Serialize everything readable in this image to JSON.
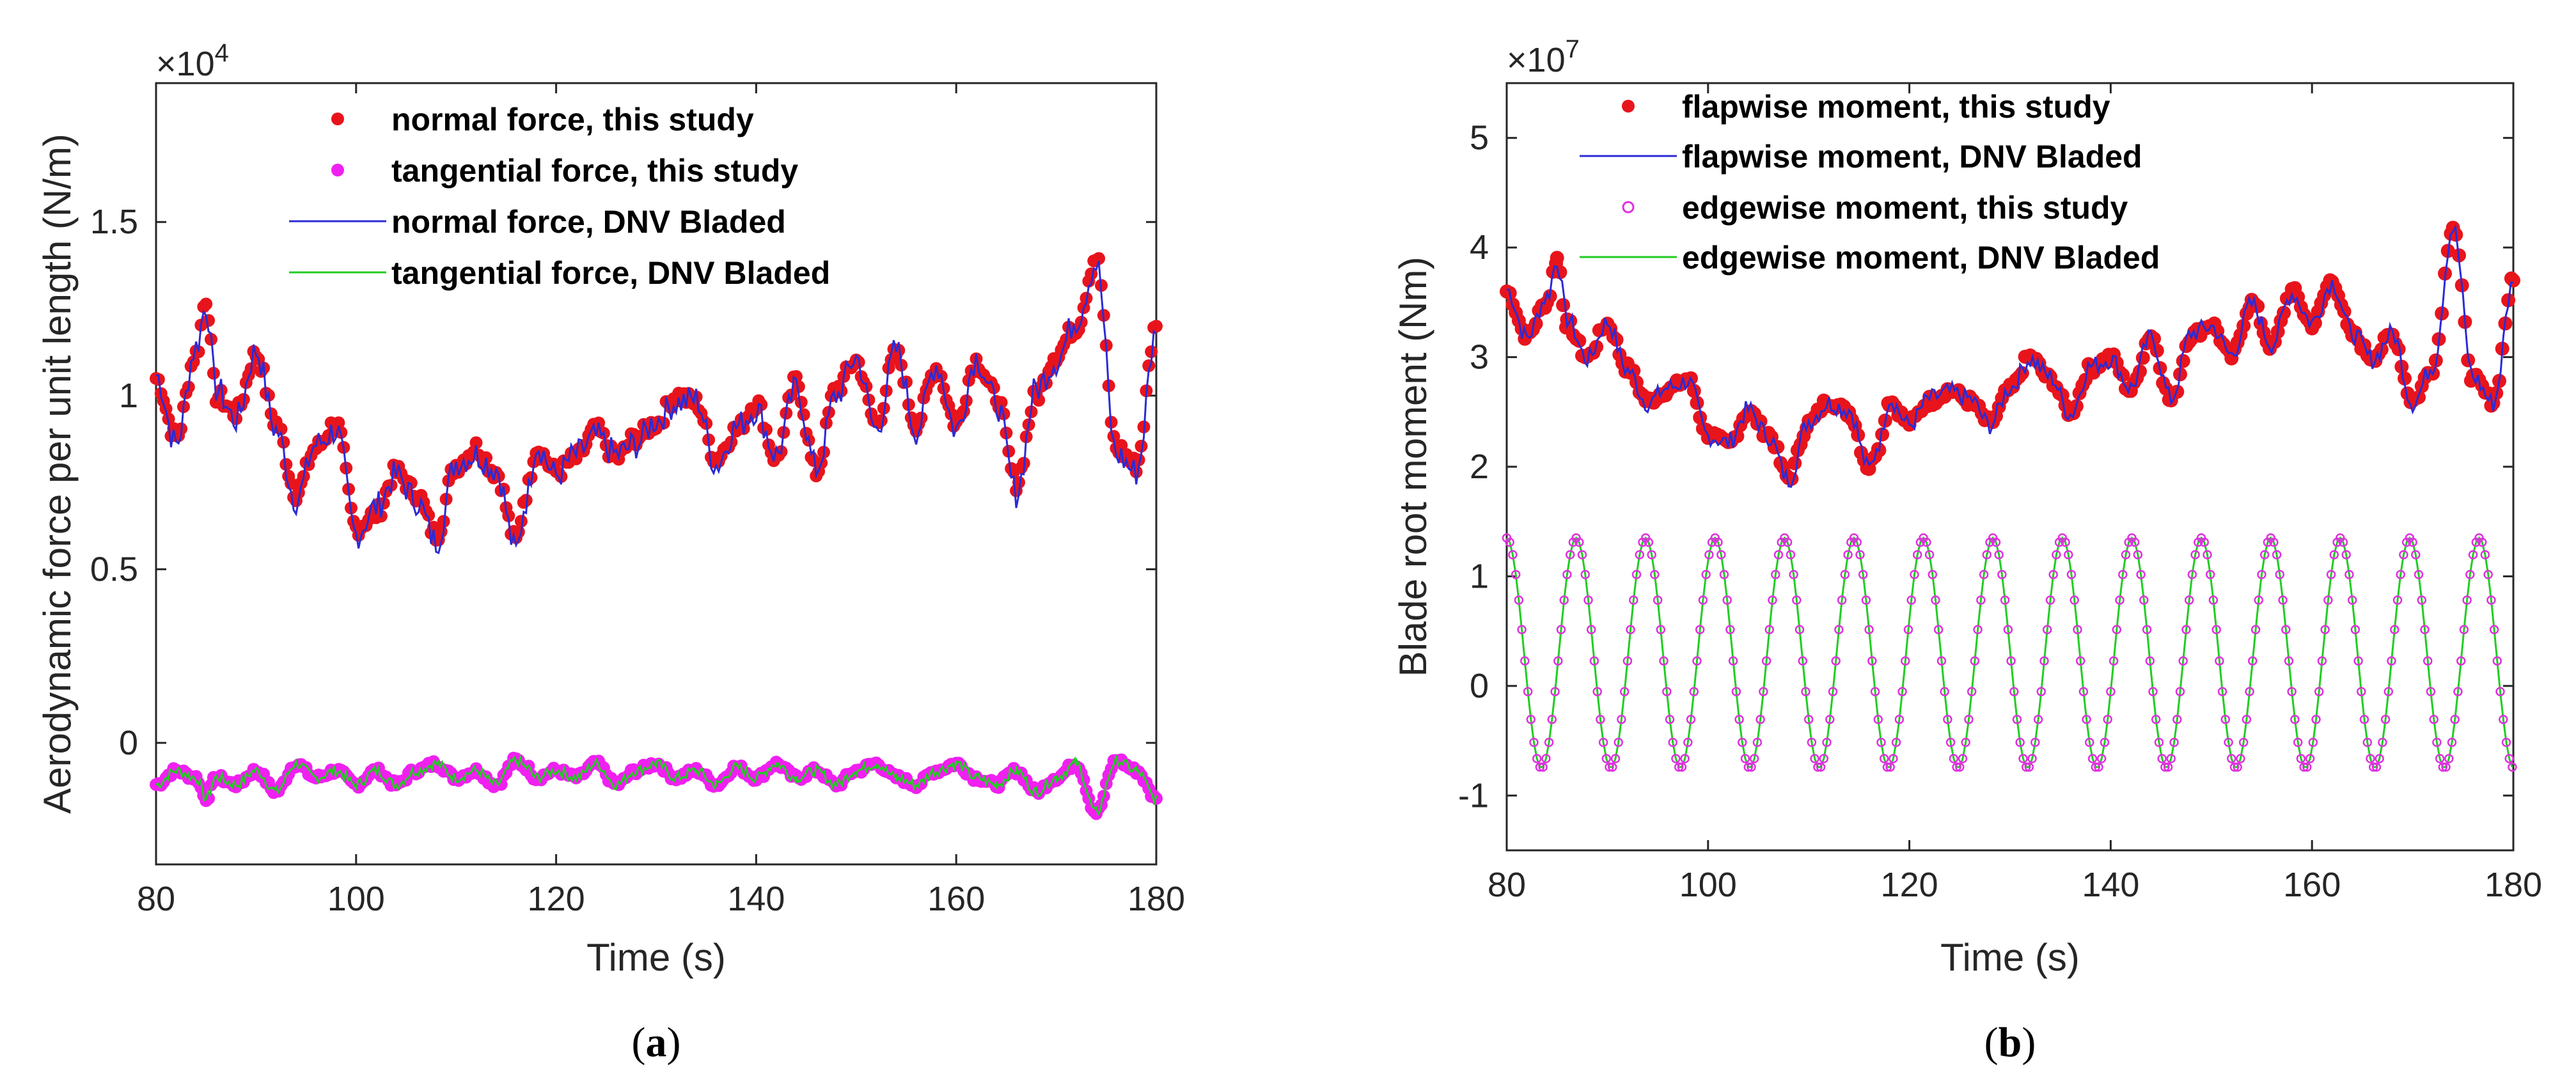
{
  "chart_data": [
    {
      "type": "line",
      "panel_label": "a",
      "xlabel": "Time (s)",
      "ylabel": "Aerodynamic force per unit length (N/m)",
      "exponent_base": "×10",
      "exponent_power": "4",
      "xlim": [
        80,
        180
      ],
      "ylim": [
        -0.35,
        1.9
      ],
      "xticks": [
        80,
        100,
        120,
        140,
        160,
        180
      ],
      "xtick_labels": [
        "80",
        "100",
        "120",
        "140",
        "160",
        "180"
      ],
      "yticks": [
        0,
        0.5,
        1,
        1.5
      ],
      "ytick_labels": [
        "0",
        "0.5",
        "1",
        "1.5"
      ],
      "legend_position": "top-center",
      "x": [
        80,
        82,
        84,
        85,
        86,
        88,
        90,
        92,
        94,
        96,
        98,
        100,
        102,
        104,
        106,
        108,
        110,
        112,
        114,
        116,
        117,
        118,
        120,
        122,
        124,
        126,
        128,
        130,
        132,
        134,
        136,
        138,
        140,
        142,
        144,
        146,
        148,
        150,
        152,
        154,
        156,
        158,
        160,
        162,
        164,
        166,
        168,
        170,
        172,
        174,
        176,
        178,
        180
      ],
      "series": [
        {
          "name": "normal force, this study",
          "style": "marker",
          "color": "#e8141c",
          "values": [
            1.05,
            0.88,
            1.12,
            1.28,
            1.0,
            0.95,
            1.12,
            0.92,
            0.72,
            0.85,
            0.92,
            0.62,
            0.66,
            0.78,
            0.72,
            0.6,
            0.8,
            0.85,
            0.78,
            0.58,
            0.72,
            0.85,
            0.78,
            0.82,
            0.9,
            0.82,
            0.88,
            0.92,
            1.0,
            0.98,
            0.82,
            0.9,
            0.98,
            0.82,
            1.04,
            0.78,
            1.02,
            1.1,
            0.92,
            1.12,
            0.92,
            1.08,
            0.92,
            1.1,
            1.0,
            0.75,
            1.0,
            1.12,
            1.2,
            1.4,
            0.85,
            0.8,
            1.2
          ]
        },
        {
          "name": "tangential force, this study",
          "style": "marker",
          "color": "#f020f0",
          "values": [
            -0.12,
            -0.08,
            -0.1,
            -0.16,
            -0.1,
            -0.12,
            -0.08,
            -0.14,
            -0.06,
            -0.1,
            -0.08,
            -0.12,
            -0.08,
            -0.12,
            -0.08,
            -0.06,
            -0.1,
            -0.08,
            -0.12,
            -0.05,
            -0.07,
            -0.1,
            -0.08,
            -0.1,
            -0.06,
            -0.12,
            -0.08,
            -0.06,
            -0.1,
            -0.08,
            -0.12,
            -0.07,
            -0.1,
            -0.06,
            -0.1,
            -0.08,
            -0.12,
            -0.08,
            -0.06,
            -0.1,
            -0.12,
            -0.08,
            -0.06,
            -0.1,
            -0.12,
            -0.08,
            -0.14,
            -0.1,
            -0.06,
            -0.2,
            -0.05,
            -0.08,
            -0.16
          ]
        },
        {
          "name": "normal force, DNV Bladed",
          "style": "line",
          "color": "#2b2bd6",
          "values": [
            1.06,
            0.86,
            1.14,
            1.26,
            1.02,
            0.93,
            1.13,
            0.9,
            0.7,
            0.86,
            0.9,
            0.6,
            0.68,
            0.77,
            0.7,
            0.58,
            0.81,
            0.83,
            0.79,
            0.55,
            0.7,
            0.86,
            0.77,
            0.83,
            0.88,
            0.83,
            0.86,
            0.93,
            0.98,
            0.99,
            0.8,
            0.91,
            0.96,
            0.83,
            1.02,
            0.79,
            1.0,
            1.11,
            0.9,
            1.13,
            0.9,
            1.09,
            0.9,
            1.11,
            0.98,
            0.72,
            1.02,
            1.1,
            1.22,
            1.38,
            0.83,
            0.78,
            1.18
          ]
        },
        {
          "name": "tangential force, DNV Bladed",
          "style": "line",
          "color": "#22cc22",
          "values": [
            -0.12,
            -0.08,
            -0.1,
            -0.16,
            -0.1,
            -0.12,
            -0.08,
            -0.14,
            -0.06,
            -0.1,
            -0.08,
            -0.12,
            -0.08,
            -0.12,
            -0.08,
            -0.06,
            -0.1,
            -0.08,
            -0.12,
            -0.05,
            -0.07,
            -0.1,
            -0.08,
            -0.1,
            -0.06,
            -0.12,
            -0.08,
            -0.06,
            -0.1,
            -0.08,
            -0.12,
            -0.07,
            -0.1,
            -0.06,
            -0.1,
            -0.08,
            -0.12,
            -0.08,
            -0.06,
            -0.1,
            -0.12,
            -0.08,
            -0.06,
            -0.1,
            -0.12,
            -0.08,
            -0.14,
            -0.1,
            -0.06,
            -0.2,
            -0.05,
            -0.08,
            -0.16
          ]
        }
      ]
    },
    {
      "type": "line",
      "panel_label": "b",
      "xlabel": "Time (s)",
      "ylabel": "Blade root moment (Nm)",
      "exponent_base": "×10",
      "exponent_power": "7",
      "xlim": [
        80,
        180
      ],
      "ylim": [
        -1.5,
        5.5
      ],
      "xticks": [
        80,
        100,
        120,
        140,
        160,
        180
      ],
      "xtick_labels": [
        "80",
        "100",
        "120",
        "140",
        "160",
        "180"
      ],
      "yticks": [
        -1,
        0,
        1,
        2,
        3,
        4,
        5
      ],
      "ytick_labels": [
        "-1",
        "0",
        "1",
        "2",
        "3",
        "4",
        "5"
      ],
      "legend_position": "top-center",
      "flap_x": [
        80,
        82,
        84,
        85,
        86,
        88,
        90,
        92,
        94,
        96,
        98,
        100,
        102,
        104,
        106,
        108,
        110,
        112,
        114,
        116,
        117,
        118,
        120,
        122,
        124,
        126,
        128,
        130,
        132,
        134,
        136,
        138,
        140,
        142,
        144,
        146,
        148,
        150,
        152,
        154,
        156,
        158,
        160,
        162,
        164,
        166,
        168,
        170,
        172,
        174,
        176,
        178,
        180
      ],
      "edge_period_s": 6.9,
      "edge_amplitude": 1.05,
      "edge_mean": 0.3,
      "series": [
        {
          "name": "flapwise moment, this study",
          "style": "marker",
          "color": "#e8141c",
          "values": [
            3.6,
            3.2,
            3.5,
            3.9,
            3.3,
            3.0,
            3.3,
            2.9,
            2.6,
            2.7,
            2.8,
            2.3,
            2.2,
            2.5,
            2.3,
            1.9,
            2.4,
            2.6,
            2.5,
            2.0,
            2.2,
            2.6,
            2.4,
            2.6,
            2.7,
            2.6,
            2.4,
            2.7,
            3.0,
            2.8,
            2.5,
            2.9,
            3.0,
            2.7,
            3.2,
            2.6,
            3.2,
            3.3,
            3.0,
            3.5,
            3.1,
            3.6,
            3.3,
            3.7,
            3.2,
            3.0,
            3.2,
            2.6,
            2.9,
            4.2,
            2.8,
            2.6,
            3.7
          ]
        },
        {
          "name": "flapwise moment, DNV Bladed",
          "style": "line",
          "color": "#2b2bd6",
          "values": [
            3.62,
            3.18,
            3.55,
            3.88,
            3.35,
            2.98,
            3.32,
            2.88,
            2.58,
            2.72,
            2.78,
            2.28,
            2.22,
            2.52,
            2.28,
            1.88,
            2.42,
            2.58,
            2.52,
            1.98,
            2.22,
            2.62,
            2.38,
            2.62,
            2.68,
            2.62,
            2.38,
            2.72,
            2.98,
            2.82,
            2.48,
            2.92,
            2.98,
            2.72,
            3.18,
            2.62,
            3.22,
            3.28,
            3.02,
            3.48,
            3.12,
            3.58,
            3.32,
            3.68,
            3.22,
            2.98,
            3.22,
            2.58,
            2.92,
            4.18,
            2.82,
            2.58,
            3.68
          ]
        },
        {
          "name": "edgewise moment, this study",
          "style": "open-marker",
          "color": "#e030e0",
          "values": []
        },
        {
          "name": "edgewise moment, DNV Bladed",
          "style": "line",
          "color": "#22cc22",
          "values": []
        }
      ]
    }
  ]
}
